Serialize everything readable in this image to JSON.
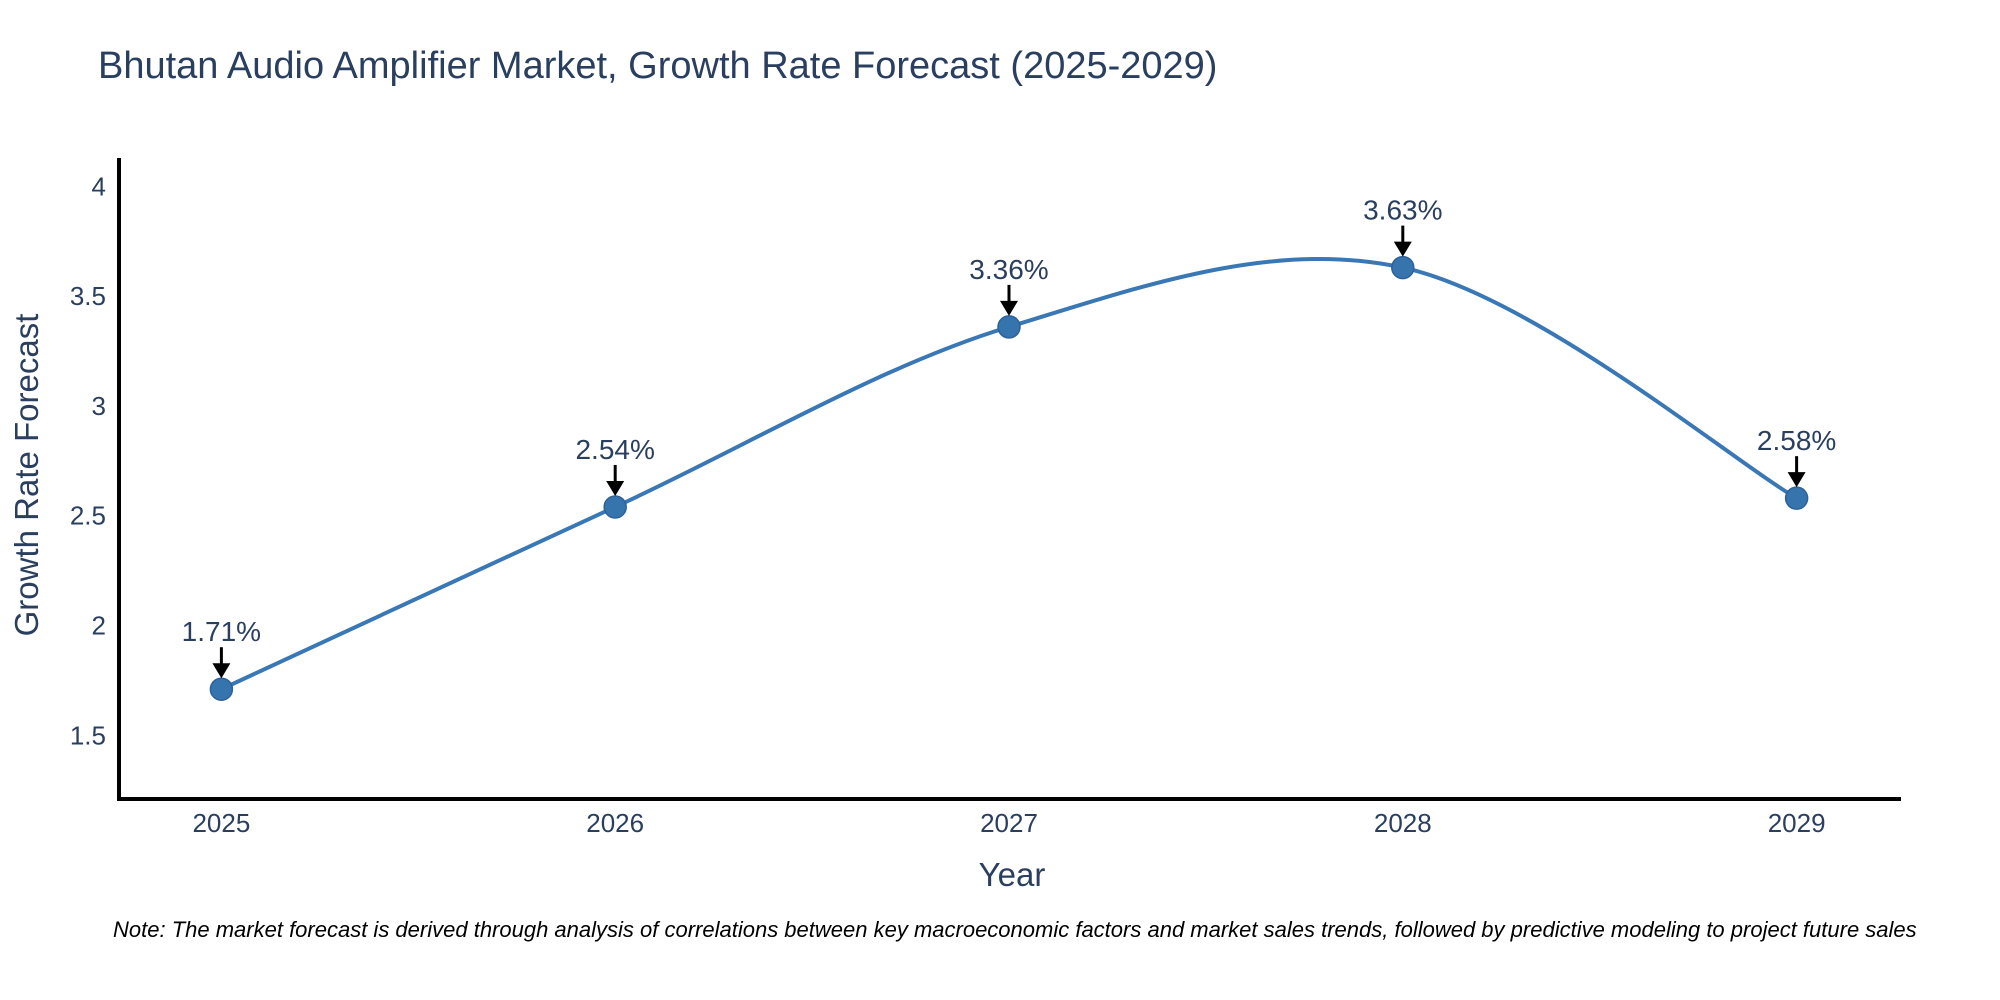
{
  "chart_data": {
    "type": "line",
    "title": "Bhutan Audio Amplifier Market, Growth Rate Forecast (2025-2029)",
    "x": [
      2025,
      2026,
      2027,
      2028,
      2029
    ],
    "values": [
      1.71,
      2.54,
      3.36,
      3.63,
      2.58
    ],
    "point_labels": [
      "1.71%",
      "2.54%",
      "3.36%",
      "3.63%",
      "2.58%"
    ],
    "xlabel": "Year",
    "ylabel": "Growth Rate Forecast",
    "xtick_labels": [
      "2025",
      "2026",
      "2027",
      "2028",
      "2029"
    ],
    "yticks": [
      1.5,
      2,
      2.5,
      3,
      3.5,
      4
    ],
    "ytick_labels": [
      "1.5",
      "2",
      "2.5",
      "3",
      "3.5",
      "4"
    ],
    "xlim": [
      2024.74,
      2029.26
    ],
    "ylim": [
      1.21,
      4.12
    ],
    "grid": false,
    "legend": "none",
    "line_shape": "spline",
    "colors": {
      "line": "#3a78b5",
      "marker": "#3674ae",
      "marker_edge": "#2d619b",
      "axis": "#000000",
      "text": "#2a3f5f",
      "arrow": "#000000",
      "background": "#ffffff"
    }
  },
  "note": {
    "text": "Note: The market forecast is derived through analysis of correlations between key macroeconomic factors and market sales trends, followed by predictive modeling to project future sales"
  }
}
